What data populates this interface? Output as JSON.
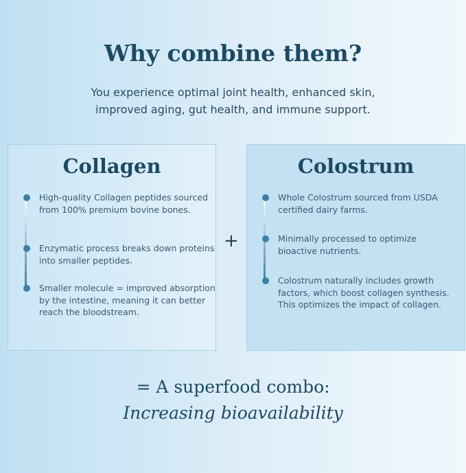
{
  "title": "Why combine them?",
  "subtitle": [
    "You experience optimal joint health, enhanced skin,",
    "improved aging, gut health, and immune support."
  ],
  "collagen": {
    "heading": "Collagen",
    "items": [
      "High-quality Collagen peptides sourced from 100% premium bovine bones.",
      "Enzymatic process breaks down proteins into smaller peptides.",
      "Smaller molecule = improved absorption by the intestine, meaning it can better reach the bloodstream."
    ]
  },
  "colostrum": {
    "heading": "Colostrum",
    "items": [
      "Whole Colostrum sourced from USDA certified dairy farms.",
      "Minimally processed to optimize bioactive nutrients.",
      "Colostrum naturally includes growth factors, which boost collagen synthesis. This optimizes the impact of collagen."
    ]
  },
  "plus": "+",
  "result": {
    "line1": "= A superfood combo:",
    "line2": "Increasing bioavailability"
  }
}
